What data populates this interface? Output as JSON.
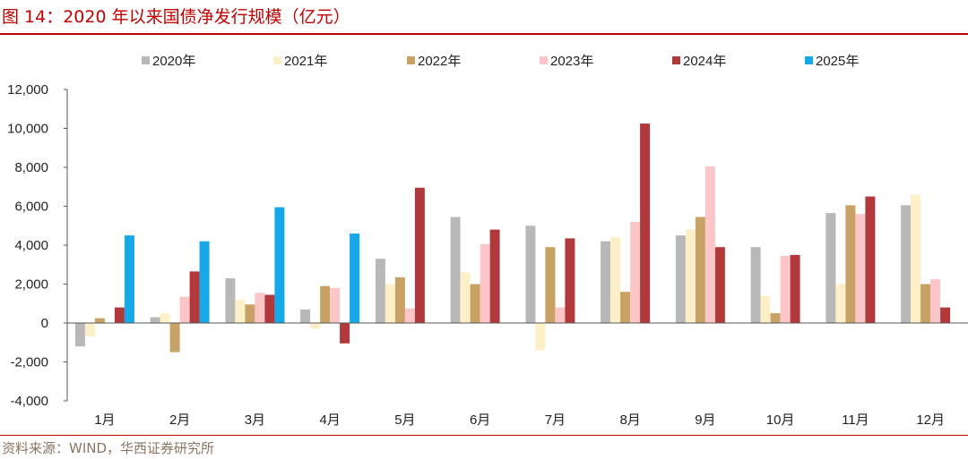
{
  "figure": {
    "title": "图 14：2020 年以来国债净发行规模（亿元）",
    "source": "资料来源：WIND，华西证券研究所"
  },
  "chart_data": {
    "type": "bar",
    "categories": [
      "1月",
      "2月",
      "3月",
      "4月",
      "5月",
      "6月",
      "7月",
      "8月",
      "9月",
      "10月",
      "11月",
      "12月"
    ],
    "series": [
      {
        "name": "2020年",
        "color": "#b8b8b8",
        "values": [
          -1200,
          300,
          2300,
          700,
          3300,
          5450,
          5000,
          4200,
          4500,
          3900,
          5650,
          6050
        ]
      },
      {
        "name": "2021年",
        "color": "#fdf0c8",
        "values": [
          -700,
          500,
          1200,
          -300,
          2000,
          2600,
          -1400,
          4400,
          4800,
          1400,
          2000,
          6600
        ]
      },
      {
        "name": "2022年",
        "color": "#c8a165",
        "values": [
          250,
          -1500,
          950,
          1900,
          2350,
          2000,
          3900,
          1600,
          5450,
          500,
          6050,
          2000
        ]
      },
      {
        "name": "2023年",
        "color": "#fcc6c8",
        "values": [
          0,
          1350,
          1550,
          1800,
          750,
          4050,
          800,
          5200,
          8050,
          3450,
          5600,
          2250
        ]
      },
      {
        "name": "2024年",
        "color": "#b2393b",
        "values": [
          800,
          2650,
          1450,
          -1050,
          6950,
          4800,
          4350,
          10250,
          3900,
          3500,
          6500,
          800
        ]
      },
      {
        "name": "2025年",
        "color": "#16a8e8",
        "values": [
          4500,
          4200,
          5950,
          4600,
          null,
          null,
          null,
          null,
          null,
          null,
          null,
          null
        ]
      }
    ],
    "y_ticks": [
      "12,000",
      "10,000",
      "8,000",
      "6,000",
      "4,000",
      "2,000",
      "0",
      "-2,000",
      "-4,000"
    ],
    "ylim": [
      -4000,
      12000
    ],
    "legend_position": "top",
    "grid": false
  }
}
